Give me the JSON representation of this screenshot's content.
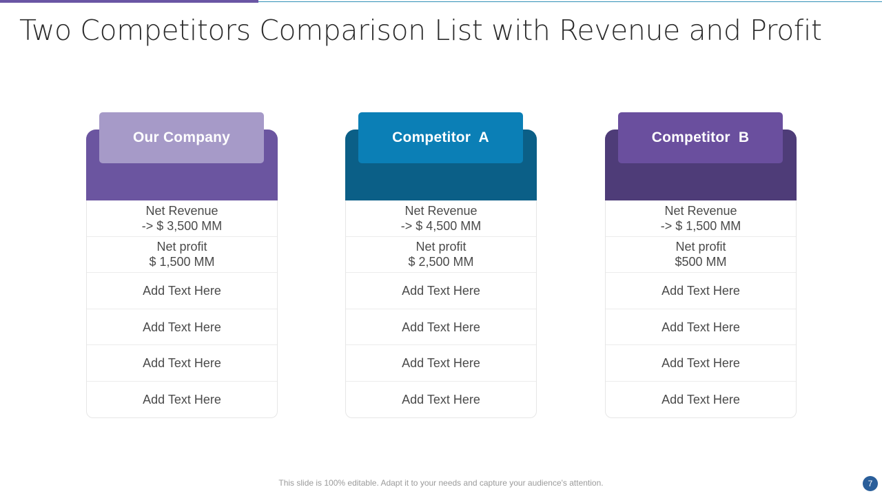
{
  "title": "Two Competitors Comparison List with Revenue and Profit",
  "colors": {
    "accent_purple": "#6a56a4",
    "accent_blue": "#2f8fb5"
  },
  "cards": [
    {
      "heading": "Our Company",
      "tab_color": "#a69ac8",
      "back_color": "#6b55a0",
      "rows": [
        [
          "Net Revenue",
          "-> $ 3,500 MM"
        ],
        [
          "Net profit",
          "$ 1,500 MM"
        ],
        [
          "Add Text Here"
        ],
        [
          "Add Text Here"
        ],
        [
          "Add Text Here"
        ],
        [
          "Add Text Here"
        ]
      ]
    },
    {
      "heading": "Competitor  A",
      "tab_color": "#0b7fb6",
      "back_color": "#0b5f87",
      "rows": [
        [
          "Net Revenue",
          "-> $ 4,500 MM"
        ],
        [
          "Net profit",
          "$ 2,500 MM"
        ],
        [
          "Add Text Here"
        ],
        [
          "Add Text Here"
        ],
        [
          "Add Text Here"
        ],
        [
          "Add Text Here"
        ]
      ]
    },
    {
      "heading": "Competitor  B",
      "tab_color": "#6a4f9e",
      "back_color": "#4e3c78",
      "rows": [
        [
          "Net Revenue",
          "-> $ 1,500 MM"
        ],
        [
          "Net profit",
          "$500 MM"
        ],
        [
          "Add Text Here"
        ],
        [
          "Add Text Here"
        ],
        [
          "Add Text Here"
        ],
        [
          "Add Text Here"
        ]
      ]
    }
  ],
  "footer": {
    "note": "This slide is 100% editable. Adapt it to your needs and capture your audience's attention.",
    "page_number": "7"
  }
}
